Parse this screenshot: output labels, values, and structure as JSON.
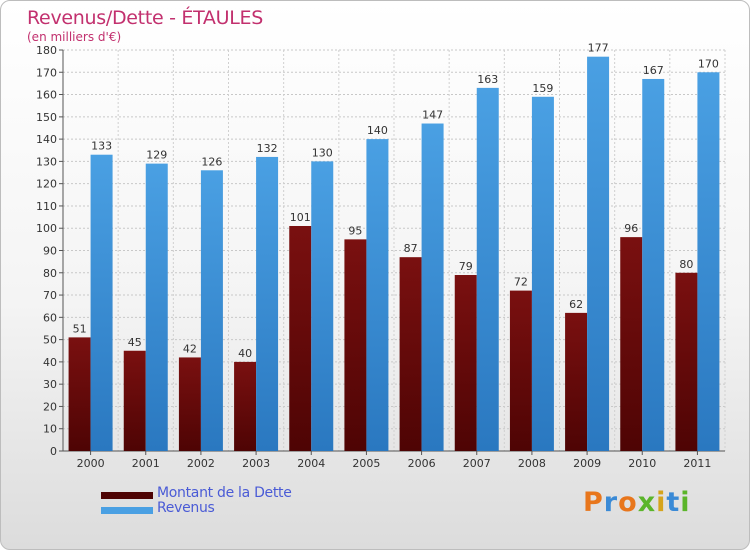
{
  "title": "Revenus/Dette - ÉTAULES",
  "subtitle": "(en milliers d'€)",
  "colors": {
    "debt": "#7a1010",
    "debt_dark": "#4e0404",
    "revenue": "#4aa0e3",
    "revenue_dark": "#2a78c0",
    "title": "#c2306e",
    "legend_text": "#4a5bd6"
  },
  "chart_data": {
    "type": "bar",
    "title": "Revenus/Dette - ÉTAULES",
    "ylabel": "(en milliers d'€)",
    "categories": [
      "2000",
      "2001",
      "2002",
      "2003",
      "2004",
      "2005",
      "2006",
      "2007",
      "2008",
      "2009",
      "2010",
      "2011"
    ],
    "series": [
      {
        "name": "Montant de la Dette",
        "values": [
          51,
          45,
          42,
          40,
          101,
          95,
          87,
          79,
          72,
          62,
          96,
          80
        ]
      },
      {
        "name": "Revenus",
        "values": [
          133,
          129,
          126,
          132,
          130,
          140,
          147,
          163,
          159,
          177,
          167,
          170
        ]
      }
    ],
    "ylim": [
      0,
      180
    ],
    "yticks": [
      0,
      10,
      20,
      30,
      40,
      50,
      60,
      70,
      80,
      90,
      100,
      110,
      120,
      130,
      140,
      150,
      160,
      170,
      180
    ],
    "grid": true,
    "legend_position": "bottom-left"
  },
  "legend": {
    "debt_label": "Montant de la Dette",
    "revenue_label": "Revenus"
  },
  "logo": {
    "text": "Proxiti",
    "letter_colors": [
      "#e8761c",
      "#3a8ad6",
      "#e8761c",
      "#5bb52a",
      "#d6a41c",
      "#3a8ad6",
      "#5bb52a"
    ]
  }
}
